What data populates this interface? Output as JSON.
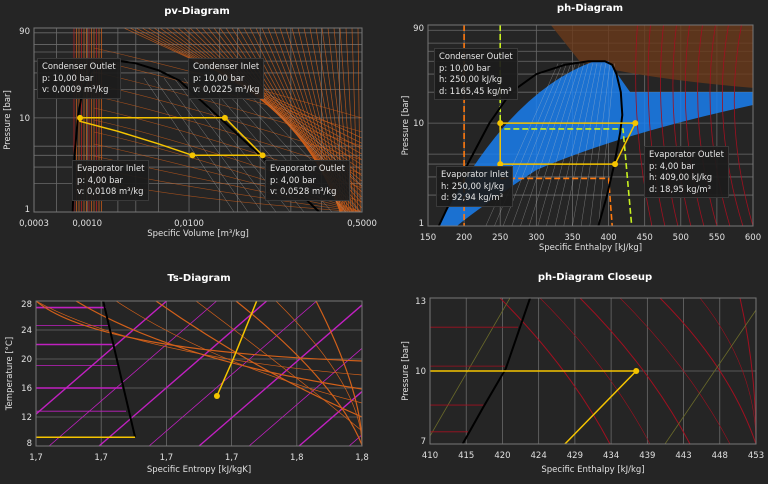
{
  "colors": {
    "background": "#252525",
    "grid": "#6a6a6a",
    "cycle": "#f5c400",
    "dome": "#000000",
    "isotherm": "#d2601a",
    "isochore": "#a0a0a0",
    "isentrope": "#c020c0",
    "fill_blue": "#1a7ff0",
    "dashed_orange": "#ff7a10",
    "dashed_lime": "#c8f020",
    "iso_red": "#a01020"
  },
  "chart_data": [
    {
      "type": "line",
      "title": "pv-Diagram",
      "xlabel": "Specific Volume [m³/kg]",
      "ylabel": "Pressure [bar]",
      "xscale": "log",
      "yscale": "log",
      "xlim": [
        0.0003,
        0.5
      ],
      "ylim": [
        1,
        90
      ],
      "xticks": [
        {
          "v": 0.0003,
          "label": "0,0003"
        },
        {
          "v": 0.001,
          "label": "0,0010"
        },
        {
          "v": 0.01,
          "label": "0,0100"
        },
        {
          "v": 0.5,
          "label": "0,5000"
        }
      ],
      "yticks": [
        {
          "v": 1,
          "label": "1"
        },
        {
          "v": 10,
          "label": "10"
        },
        {
          "v": 90,
          "label": "90"
        }
      ],
      "grid": true,
      "saturation_dome": [
        [
          0.00072,
          1
        ],
        [
          0.00075,
          4
        ],
        [
          0.00081,
          10
        ],
        [
          0.0009,
          20
        ],
        [
          0.0011,
          32
        ],
        [
          0.0014,
          38
        ],
        [
          0.00195,
          40.6
        ],
        [
          0.003,
          38
        ],
        [
          0.005,
          32
        ],
        [
          0.008,
          25
        ],
        [
          0.02,
          10
        ],
        [
          0.05,
          4
        ],
        [
          0.19,
          1
        ]
      ],
      "cycle": [
        [
          0.00085,
          10
        ],
        [
          0.0225,
          10
        ],
        [
          0.0528,
          4
        ],
        [
          0.0108,
          4
        ],
        [
          0.005,
          5.3
        ],
        [
          0.002,
          7.2
        ],
        [
          0.00085,
          9.2
        ],
        [
          0.00085,
          10
        ]
      ],
      "points": [
        {
          "name": "Condenser Outlet",
          "x": 0.00085,
          "y": 10,
          "lines": [
            "Condenser Outlet",
            "p: 10,00 bar",
            "v: 0,0009 m³/kg"
          ]
        },
        {
          "name": "Condenser Inlet",
          "x": 0.0225,
          "y": 10,
          "lines": [
            "Condenser Inlet",
            "p: 10,00 bar",
            "v: 0,0225 m³/kg"
          ]
        },
        {
          "name": "Evaporator Inlet",
          "x": 0.0108,
          "y": 4,
          "lines": [
            "Evaporator Inlet",
            "p: 4,00 bar",
            "v: 0,0108 m³/kg"
          ]
        },
        {
          "name": "Evaporator Outlet",
          "x": 0.0528,
          "y": 4,
          "lines": [
            "Evaporator Outlet",
            "p: 4,00 bar",
            "v: 0,0528 m³/kg"
          ]
        }
      ]
    },
    {
      "type": "line",
      "title": "ph-Diagram",
      "xlabel": "Specific Enthalpy [kJ/kg]",
      "ylabel": "Pressure [bar]",
      "xscale": "linear",
      "yscale": "log",
      "xlim": [
        150,
        600
      ],
      "ylim": [
        1,
        90
      ],
      "xticks": [
        {
          "v": 150,
          "label": "150"
        },
        {
          "v": 200,
          "label": "200"
        },
        {
          "v": 250,
          "label": "250"
        },
        {
          "v": 300,
          "label": "300"
        },
        {
          "v": 350,
          "label": "350"
        },
        {
          "v": 400,
          "label": "400"
        },
        {
          "v": 450,
          "label": "450"
        },
        {
          "v": 500,
          "label": "500"
        },
        {
          "v": 550,
          "label": "550"
        },
        {
          "v": 600,
          "label": "600"
        }
      ],
      "yticks": [
        {
          "v": 1,
          "label": "1"
        },
        {
          "v": 10,
          "label": "10"
        },
        {
          "v": 90,
          "label": "90"
        }
      ],
      "grid": true,
      "saturation_dome": [
        [
          165,
          1
        ],
        [
          185,
          2
        ],
        [
          205,
          4
        ],
        [
          235,
          10
        ],
        [
          265,
          20
        ],
        [
          300,
          30
        ],
        [
          340,
          37
        ],
        [
          372,
          40
        ],
        [
          395,
          40
        ],
        [
          405,
          37
        ],
        [
          411,
          30
        ],
        [
          417,
          20
        ],
        [
          419,
          12
        ],
        [
          416,
          8
        ],
        [
          408,
          4
        ],
        [
          398,
          2
        ],
        [
          386,
          1
        ]
      ],
      "cycle": [
        [
          250,
          10
        ],
        [
          437,
          10
        ],
        [
          409,
          4
        ],
        [
          250,
          4
        ],
        [
          250,
          10
        ]
      ],
      "dashed_orange": [
        [
          [
            200,
            90
          ],
          [
            200,
            1
          ]
        ],
        [
          [
            250,
            2.9
          ],
          [
            400,
            2.9
          ],
          [
            405,
            1
          ]
        ]
      ],
      "dashed_lime": [
        [
          [
            250,
            90
          ],
          [
            250,
            8.8
          ],
          [
            420,
            8.8
          ],
          [
            432,
            1
          ]
        ]
      ],
      "points": [
        {
          "name": "Condenser Outlet",
          "x": 250,
          "y": 10,
          "lines": [
            "Condenser Outlet",
            "p: 10,00 bar",
            "h: 250,00 kJ/kg",
            "d: 1165,45 kg/m³"
          ]
        },
        {
          "name": "Condenser Inlet",
          "x": 437,
          "y": 10,
          "lines": []
        },
        {
          "name": "Evaporator Inlet",
          "x": 250,
          "y": 4,
          "lines": [
            "Evaporator Inlet",
            "h: 250,00 kJ/kg",
            "d: 92,94 kg/m³"
          ]
        },
        {
          "name": "Evaporator Outlet",
          "x": 409,
          "y": 4,
          "lines": [
            "Evaporator Outlet",
            "p: 4,00 bar",
            "h: 409,00 kJ/kg",
            "d: 18,95 kg/m³"
          ]
        }
      ]
    },
    {
      "type": "line",
      "title": "Ts-Diagram",
      "xlabel": "Specific Entropy [kJ/kgK]",
      "ylabel": "Temperature [°C]",
      "xscale": "linear",
      "yscale": "linear",
      "xlim": [
        1.68,
        1.78
      ],
      "ylim": [
        8,
        28
      ],
      "xticks": [
        {
          "v": 1.68,
          "label": "1,7"
        },
        {
          "v": 1.7,
          "label": "1,7"
        },
        {
          "v": 1.72,
          "label": "1,7"
        },
        {
          "v": 1.74,
          "label": "1,7"
        },
        {
          "v": 1.76,
          "label": "1,8"
        },
        {
          "v": 1.78,
          "label": "1,8"
        }
      ],
      "yticks": [
        {
          "v": 8,
          "label": "8"
        },
        {
          "v": 12,
          "label": "12"
        },
        {
          "v": 16,
          "label": "16"
        },
        {
          "v": 20,
          "label": "20"
        },
        {
          "v": 24,
          "label": "24"
        },
        {
          "v": 28,
          "label": "28"
        }
      ],
      "grid": true,
      "saturation_dome": [
        [
          1.7006,
          28
        ],
        [
          1.7104,
          9.2
        ]
      ],
      "cycle": [
        [
          1.68,
          9.2
        ],
        [
          1.7104,
          9.2
        ]
      ],
      "cycle2": [
        [
          1.7355,
          14.9
        ],
        [
          1.7405,
          20
        ],
        [
          1.7477,
          28
        ]
      ],
      "points": [
        {
          "name": "Evaporator Outlet",
          "x": 1.7355,
          "y": 14.9
        }
      ]
    },
    {
      "type": "line",
      "title": "ph-Diagram Closeup",
      "xlabel": "Specific Enthalpy [kJ/kg]",
      "ylabel": "Pressure [bar]",
      "xscale": "linear",
      "yscale": "linear",
      "xlim": [
        410,
        453
      ],
      "ylim": [
        7,
        13
      ],
      "xticks": [
        {
          "v": 410,
          "label": "410"
        },
        {
          "v": 414.78,
          "label": "415"
        },
        {
          "v": 419.56,
          "label": "420"
        },
        {
          "v": 424.33,
          "label": "424"
        },
        {
          "v": 429.11,
          "label": "429"
        },
        {
          "v": 433.89,
          "label": "434"
        },
        {
          "v": 438.67,
          "label": "439"
        },
        {
          "v": 443.44,
          "label": "443"
        },
        {
          "v": 448.22,
          "label": "448"
        },
        {
          "v": 453,
          "label": "453"
        }
      ],
      "yticks": [
        {
          "v": 7,
          "label": "7"
        },
        {
          "v": 10,
          "label": "10"
        },
        {
          "v": 13,
          "label": "13"
        }
      ],
      "grid": true,
      "saturation_dome": [
        [
          414.3,
          7
        ],
        [
          417,
          8.5
        ],
        [
          420,
          10.1
        ],
        [
          423.2,
          13
        ]
      ],
      "cycle": [
        [
          410,
          10
        ],
        [
          437.2,
          10
        ],
        [
          427.8,
          7
        ]
      ],
      "points": [
        {
          "name": "Condenser Inlet",
          "x": 437.2,
          "y": 10
        }
      ]
    }
  ]
}
